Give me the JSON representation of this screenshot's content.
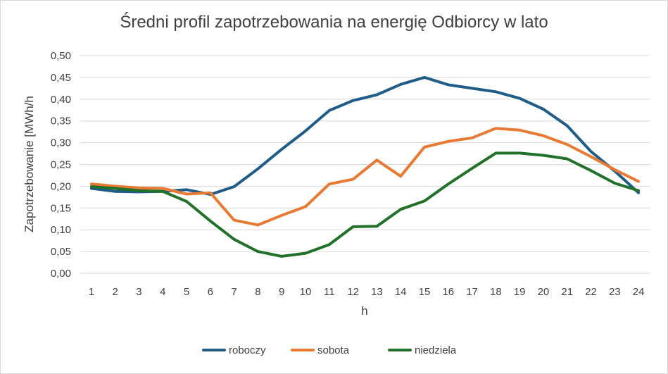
{
  "chart_data": {
    "type": "line",
    "title": "Średni profil zapotrzebowania na energię Odbiorcy w lato",
    "xlabel": "h",
    "ylabel": "Zapotrzebowanie [MWh/h",
    "categories": [
      "1",
      "2",
      "3",
      "4",
      "5",
      "6",
      "7",
      "8",
      "9",
      "10",
      "11",
      "12",
      "13",
      "14",
      "15",
      "16",
      "17",
      "18",
      "19",
      "20",
      "21",
      "22",
      "23",
      "24"
    ],
    "y_ticks": [
      "0,00",
      "0,05",
      "0,10",
      "0,15",
      "0,20",
      "0,25",
      "0,30",
      "0,35",
      "0,40",
      "0,45",
      "0,50"
    ],
    "ylim": [
      0,
      0.5
    ],
    "grid": true,
    "legend_position": "bottom",
    "series": [
      {
        "name": "roboczy",
        "color": "#1f5c87",
        "values": [
          0.195,
          0.188,
          0.187,
          0.188,
          0.192,
          0.181,
          0.199,
          0.24,
          0.285,
          0.327,
          0.374,
          0.397,
          0.41,
          0.434,
          0.45,
          0.433,
          0.425,
          0.417,
          0.402,
          0.377,
          0.339,
          0.28,
          0.235,
          0.185
        ]
      },
      {
        "name": "sobota",
        "color": "#e97a34",
        "values": [
          0.205,
          0.2,
          0.196,
          0.195,
          0.182,
          0.185,
          0.122,
          0.111,
          0.133,
          0.153,
          0.205,
          0.216,
          0.26,
          0.223,
          0.29,
          0.303,
          0.311,
          0.333,
          0.329,
          0.316,
          0.296,
          0.268,
          0.238,
          0.211
        ]
      },
      {
        "name": "niedziela",
        "color": "#22712a",
        "values": [
          0.199,
          0.195,
          0.19,
          0.188,
          0.165,
          0.12,
          0.078,
          0.05,
          0.039,
          0.046,
          0.066,
          0.107,
          0.108,
          0.147,
          0.166,
          0.205,
          0.241,
          0.276,
          0.276,
          0.271,
          0.263,
          0.236,
          0.207,
          0.19
        ]
      }
    ]
  }
}
